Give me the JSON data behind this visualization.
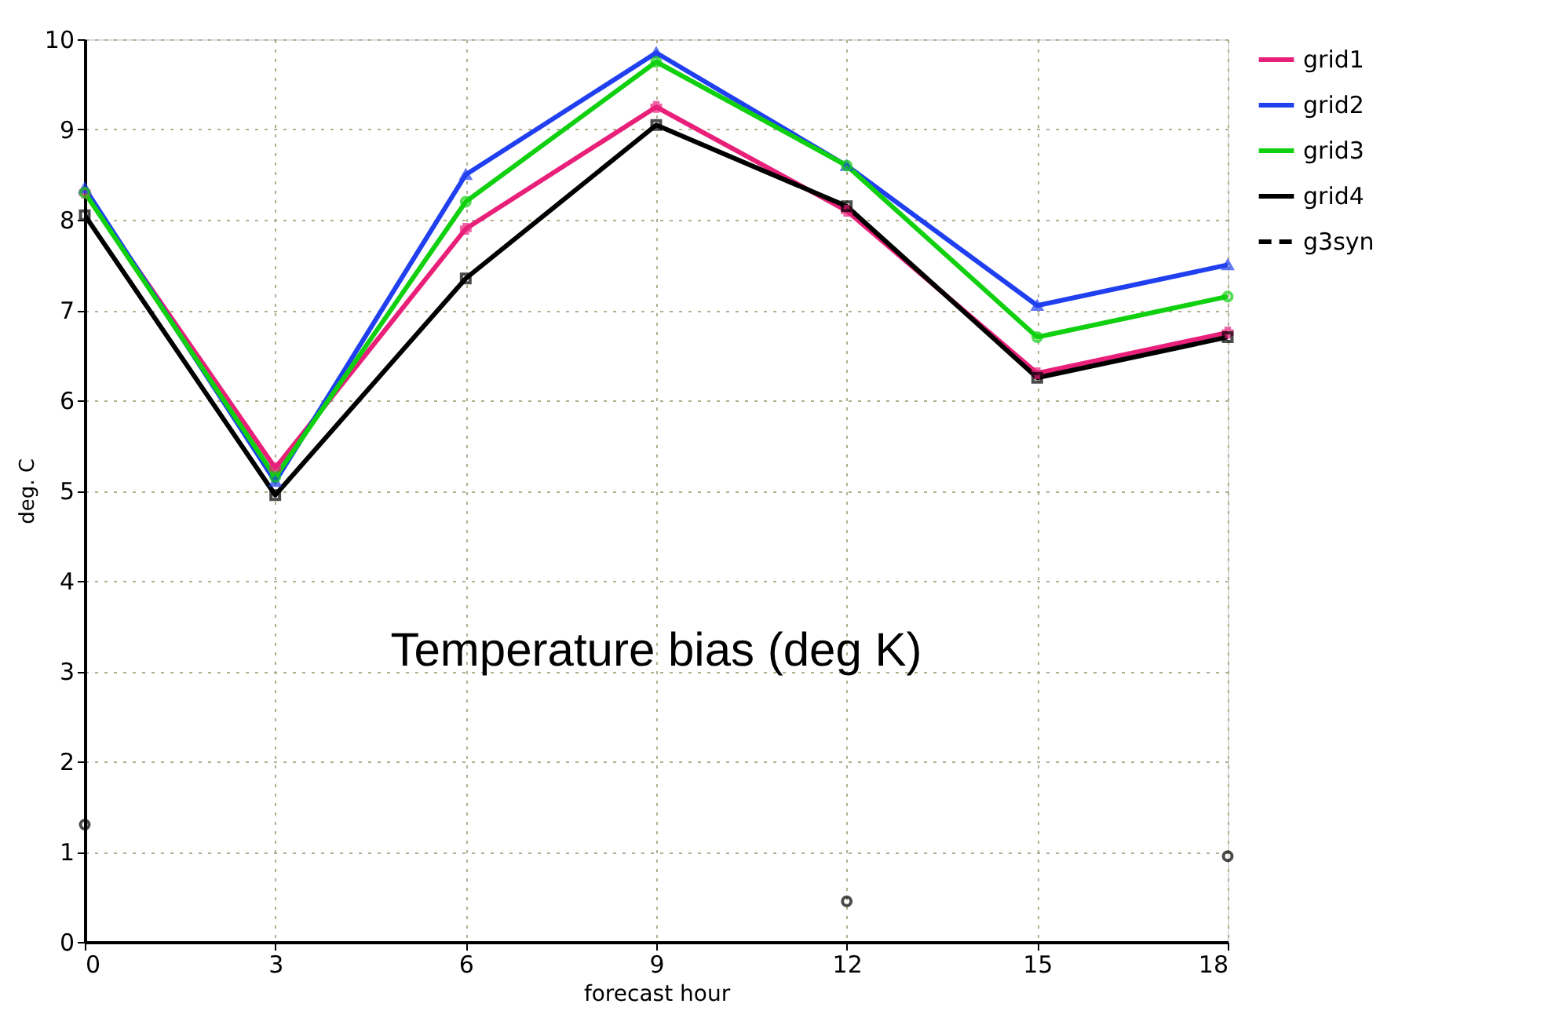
{
  "chart_data": {
    "type": "line",
    "xlabel": "forecast hour",
    "ylabel": "deg. C",
    "x": [
      0,
      3,
      6,
      9,
      12,
      15,
      18
    ],
    "xlim": [
      0,
      18
    ],
    "xticks": [
      0,
      3,
      6,
      9,
      12,
      15,
      18
    ],
    "ylim": [
      0,
      10
    ],
    "yticks": [
      0,
      1,
      2,
      3,
      4,
      5,
      6,
      7,
      8,
      9,
      10
    ],
    "grid": true,
    "legend": "right",
    "line_style": "solid",
    "annotations": [
      "Temperature bias (deg K)"
    ],
    "series": [
      {
        "name": "grid1",
        "color": "#e8207a",
        "marker": "cross",
        "values": [
          8.3,
          5.25,
          7.9,
          9.25,
          8.1,
          6.3,
          6.75
        ]
      },
      {
        "name": "grid2",
        "color": "#2040f0",
        "marker": "triangle",
        "values": [
          8.35,
          5.1,
          8.5,
          9.85,
          8.6,
          7.05,
          7.5
        ]
      },
      {
        "name": "grid3",
        "color": "#10d010",
        "marker": "circle",
        "values": [
          8.3,
          5.15,
          8.2,
          9.75,
          8.6,
          6.7,
          7.15
        ]
      },
      {
        "name": "grid4",
        "color": "#000000",
        "marker": "square",
        "values": [
          8.05,
          4.95,
          7.35,
          9.05,
          8.15,
          6.25,
          6.7
        ]
      },
      {
        "name": "g3syn",
        "type": "scatter",
        "color": "#000000",
        "marker": "circle",
        "line_style": "dashed",
        "values": [
          1.3,
          null,
          null,
          null,
          0.45,
          null,
          0.95
        ]
      }
    ]
  }
}
